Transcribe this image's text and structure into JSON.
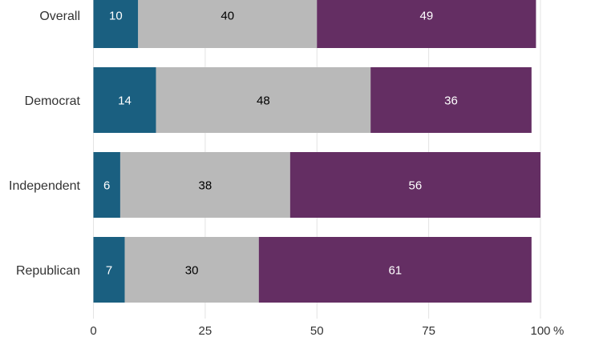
{
  "chart_data": {
    "type": "bar",
    "orientation": "horizontal",
    "stacked": true,
    "categories": [
      "Overall",
      "Democrat",
      "Independent",
      "Republican"
    ],
    "series": [
      {
        "values": [
          10,
          14,
          6,
          7
        ],
        "color": "#1a5f80",
        "label_color": "#ffffff"
      },
      {
        "values": [
          40,
          48,
          38,
          30
        ],
        "color": "#b9b9b9",
        "label_color": "#000000"
      },
      {
        "values": [
          49,
          36,
          56,
          61
        ],
        "color": "#642e63",
        "label_color": "#ffffff"
      }
    ],
    "x_ticks": [
      0,
      25,
      50,
      75,
      100
    ],
    "x_unit": "%",
    "xlim": [
      0,
      100
    ],
    "grid": true,
    "legend": "none"
  }
}
